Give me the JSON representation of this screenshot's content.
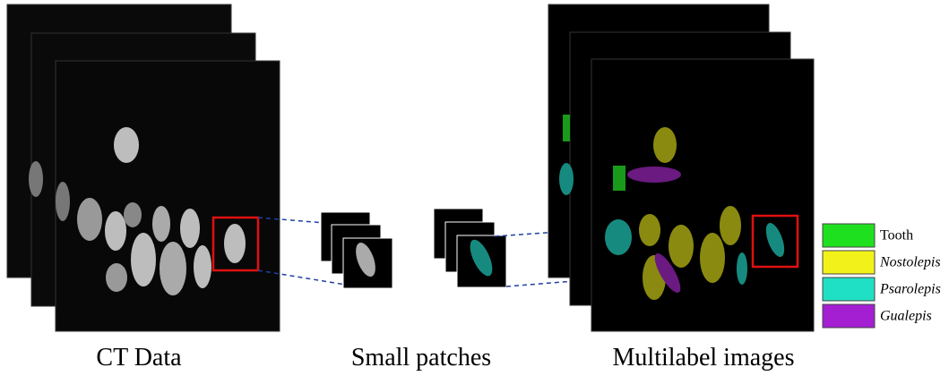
{
  "captions": {
    "ct_data": "CT Data",
    "small_patches": "Small patches",
    "multilabel_images": "Multilabel images"
  },
  "legend": [
    {
      "label": "Tooth",
      "color": "#1fe01f"
    },
    {
      "label": "Nostolepis",
      "color": "#f2f21a"
    },
    {
      "label": "Psarolepis",
      "color": "#1fe0c4"
    },
    {
      "label": "Gualepis",
      "color": "#a31fd1"
    }
  ]
}
